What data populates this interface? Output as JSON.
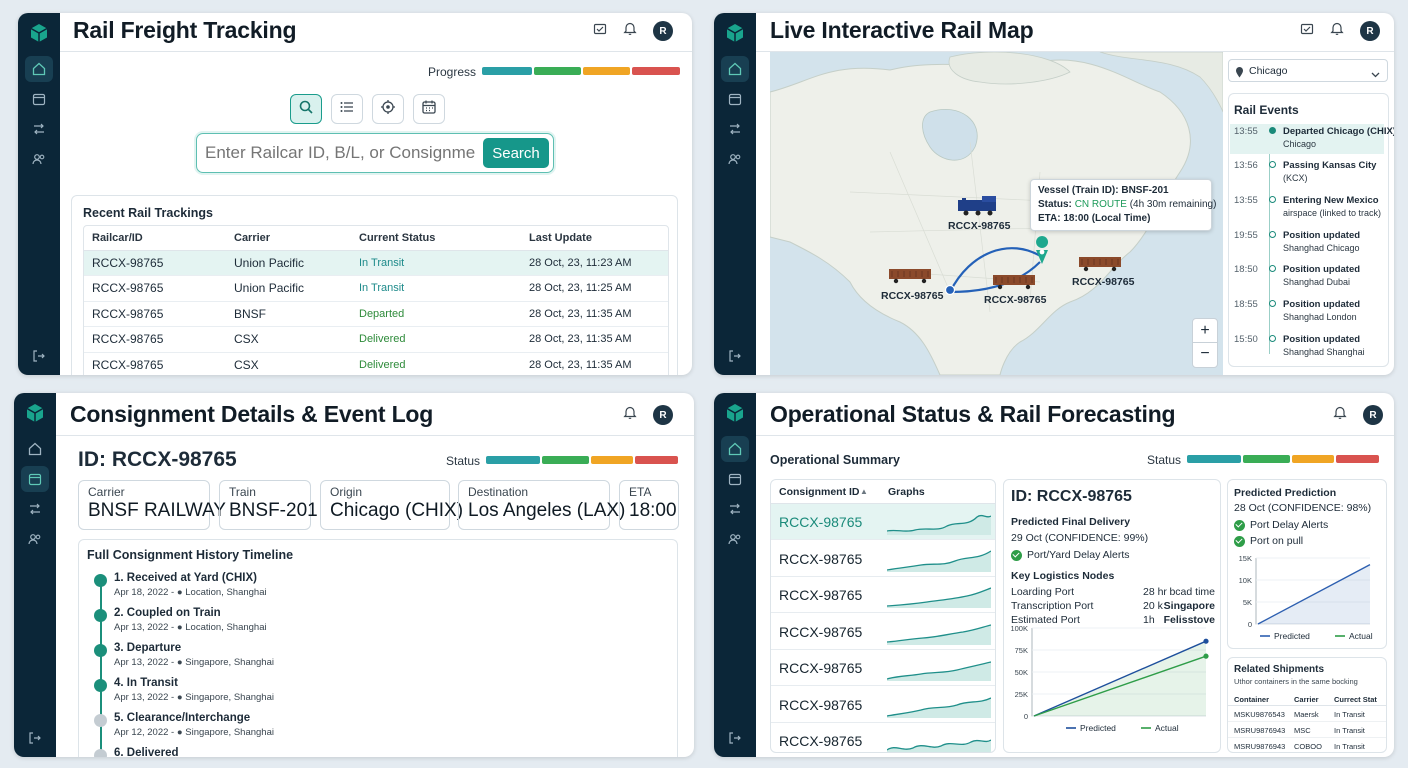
{
  "colors": {
    "sidebar": "#0b2638",
    "accent": "#1a9c8c",
    "progress": [
      "#2a9fa6",
      "#3aad56",
      "#f0a524",
      "#d9534f"
    ]
  },
  "user": {
    "initial": "R"
  },
  "p1": {
    "title": "Rail Freight Tracking",
    "progress_label": "Progress",
    "search_placeholder": "Enter Railcar ID, B/L, or Consignment",
    "search_button": "Search",
    "recent_title": "Recent Rail Trackings",
    "columns": [
      "Railcar/ID",
      "Carrier",
      "Current Status",
      "Last Update"
    ],
    "rows": [
      {
        "id": "RCCX-98765",
        "carrier": "Union Pacific",
        "status": "In Transit",
        "updated": "28 Oct, 23, 11:23 AM"
      },
      {
        "id": "RCCX-98765",
        "carrier": "Union Pacific",
        "status": "In Transit",
        "updated": "28 Oct, 23, 11:25 AM"
      },
      {
        "id": "RCCX-98765",
        "carrier": "BNSF",
        "status": "Departed",
        "updated": "28 Oct, 23, 11:35 AM"
      },
      {
        "id": "RCCX-98765",
        "carrier": "CSX",
        "status": "Delivered",
        "updated": "28 Oct, 23, 11:35 AM"
      },
      {
        "id": "RCCX-98765",
        "carrier": "CSX",
        "status": "Delivered",
        "updated": "28 Oct, 23, 11:35 AM"
      }
    ]
  },
  "p2": {
    "title": "Live Interactive Rail Map",
    "location_select": "Chicago",
    "popup": {
      "line1": "Vessel (Train ID): BNSF-201",
      "status_label": "Status:",
      "status_value": "CN ROUTE",
      "status_rest": "(4h 30m remaining)",
      "eta": "ETA: 18:00 (Local Time)"
    },
    "map_labels": [
      "RCCX-98765",
      "RCCX-98765",
      "RCCX-98765",
      "RCCX-98765"
    ],
    "zoom_in": "+",
    "zoom_out": "−",
    "events_title": "Rail Events",
    "events": [
      {
        "time": "13:55",
        "a": "Departed Chicago (CHIX)",
        "b": "Chicago"
      },
      {
        "time": "13:56",
        "a": "Passing Kansas City",
        "b": "(KCX)"
      },
      {
        "time": "13:55",
        "a": "Entering New Mexico",
        "b": "airspace (linked to track)"
      },
      {
        "time": "19:55",
        "a": "Position updated",
        "b": "Shanghad Chicago"
      },
      {
        "time": "18:50",
        "a": "Position updated",
        "b": "Shanghad Dubai"
      },
      {
        "time": "18:55",
        "a": "Position updated",
        "b": "Shanghad London"
      },
      {
        "time": "15:50",
        "a": "Position updated",
        "b": "Shanghad Shanghai"
      }
    ]
  },
  "p3": {
    "title": "Consignment Details & Event Log",
    "id_label": "ID: RCCX-98765",
    "status_label": "Status",
    "fields": [
      {
        "k": "Carrier",
        "v": "BNSF RAILWAY"
      },
      {
        "k": "Train",
        "v": "BNSF-201"
      },
      {
        "k": "Origin",
        "v": "Chicago (CHIX)"
      },
      {
        "k": "Destination",
        "v": "Los Angeles (LAX)"
      },
      {
        "k": "ETA",
        "v": "18:00"
      }
    ],
    "history_title": "Full Consignment History Timeline",
    "timeline": [
      {
        "t": "1. Received at Yard (CHIX)",
        "d": "Apr 18, 2022 -",
        "loc": "Location, Shanghai",
        "done": true
      },
      {
        "t": "2. Coupled on Train",
        "d": "Apr 13, 2022 -",
        "loc": "Location, Shanghai",
        "done": true
      },
      {
        "t": "3. Departure",
        "d": "Apr 13, 2022 -",
        "loc": "Singapore, Shanghai",
        "done": true
      },
      {
        "t": "4. In Transit",
        "d": "Apr 13, 2022 -",
        "loc": "Singapore, Shanghai",
        "done": true
      },
      {
        "t": "5. Clearance/Interchange",
        "d": "Apr 12, 2022 -",
        "loc": "Singapore, Shanghai",
        "done": false
      },
      {
        "t": "6. Delivered",
        "d": "",
        "loc": "",
        "done": false
      }
    ]
  },
  "p4": {
    "title": "Operational Status & Rail Forecasting",
    "summary_title": "Operational Summary",
    "status_label": "Status",
    "col_consignment": "Consignment ID",
    "col_graphs": "Graphs",
    "list_ids": [
      "RCCX-98765",
      "RCCX-98765",
      "RCCX-98765",
      "RCCX-98765",
      "RCCX-98765",
      "RCCX-98765",
      "RCCX-98765"
    ],
    "detail": {
      "id": "ID: RCCX-98765",
      "pfd_title": "Predicted Final Delivery",
      "pfd_value": "29 Oct (CONFIDENCE: 99%)",
      "alert": "Port/Yard Delay Alerts",
      "nodes_title": "Key Logistics Nodes",
      "nodes": [
        {
          "n": "Loarding Port",
          "v1": "28 hr",
          "v2": "bcad time"
        },
        {
          "n": "Transcription Port",
          "v1": "20 k",
          "v2": "Singapore"
        },
        {
          "n": "Estimated Port",
          "v1": "1h",
          "v2": "Felisstove"
        }
      ],
      "chart_legend": [
        "Predicted",
        "Actual"
      ]
    },
    "prediction": {
      "title": "Predicted Prediction",
      "value": "28 Oct (CONFIDENCE: 98%)",
      "checks": [
        "Port Delay Alerts",
        "Port on pull"
      ],
      "legend": [
        "Predicted",
        "Actual"
      ]
    },
    "related": {
      "title": "Related Shipments",
      "subtitle": "Uthor containers in the same bocking",
      "columns": [
        "Container",
        "Carrier",
        "Currect Stat"
      ],
      "rows": [
        {
          "c": "MSKU9876543",
          "car": "Maersk",
          "s": "In Transit"
        },
        {
          "c": "MSRU9876943",
          "car": "MSC",
          "s": "In Transit"
        },
        {
          "c": "MSRU9876943",
          "car": "COBOO",
          "s": "In Transit"
        }
      ]
    }
  },
  "chart_data": [
    {
      "type": "line",
      "title": "",
      "xlabel": "",
      "ylabel": "",
      "y_ticks": [
        "100K",
        "75K",
        "50K",
        "25K",
        "0"
      ],
      "ylim": [
        0,
        100000
      ],
      "series": [
        {
          "name": "Predicted",
          "values": [
            0,
            85000
          ]
        },
        {
          "name": "Actual",
          "values": [
            0,
            68000
          ]
        }
      ]
    },
    {
      "type": "line",
      "title": "",
      "xlabel": "",
      "ylabel": "",
      "y_ticks": [
        "15K",
        "10K",
        "5K",
        "0"
      ],
      "ylim": [
        0,
        15000
      ],
      "series": [
        {
          "name": "Predicted",
          "values": [
            0,
            13500
          ]
        }
      ]
    }
  ]
}
